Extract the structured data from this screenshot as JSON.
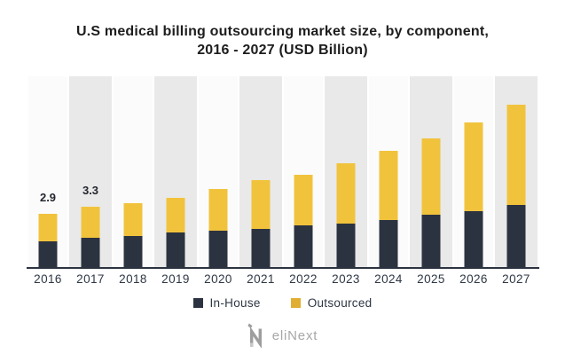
{
  "header": {
    "title_line1": "U.S medical billing outsourcing market size, by component,",
    "title_line2": "2016 - 2027 (USD Billion)"
  },
  "chart_data": {
    "type": "bar",
    "stacked": true,
    "title": "U.S medical billing outsourcing market size, by component, 2016 - 2027 (USD Billion)",
    "categories": [
      "2016",
      "2017",
      "2018",
      "2019",
      "2020",
      "2021",
      "2022",
      "2023",
      "2024",
      "2025",
      "2026",
      "2027"
    ],
    "series": [
      {
        "name": "In-House",
        "color": "#2c3340",
        "values": [
          1.4,
          1.6,
          1.7,
          1.9,
          2.0,
          2.1,
          2.3,
          2.4,
          2.6,
          2.9,
          3.1,
          3.4
        ]
      },
      {
        "name": "Outsourced",
        "color": "#f1c33d",
        "values": [
          1.5,
          1.7,
          1.8,
          1.9,
          2.3,
          2.7,
          2.8,
          3.3,
          3.8,
          4.2,
          4.9,
          5.5
        ]
      }
    ],
    "totals": [
      2.9,
      3.3,
      3.5,
      3.8,
      4.3,
      4.8,
      5.1,
      5.7,
      6.4,
      7.1,
      8.0,
      8.9
    ],
    "data_labels": [
      "2.9",
      "3.3",
      "",
      "",
      "",
      "",
      "",
      "",
      "",
      "",
      "",
      ""
    ],
    "xlabel": "",
    "ylabel": "",
    "ylim": [
      0,
      10.5
    ],
    "grid": false,
    "legend_position": "bottom",
    "background_stripes": [
      "#fbfbfb",
      "#e9e9e9"
    ],
    "axis_line_color": "#2c3340"
  },
  "legend": {
    "items": [
      {
        "label": "In-House",
        "color": "#2c3340"
      },
      {
        "label": "Outsourced",
        "color": "#dfae33"
      }
    ]
  },
  "footer": {
    "logo_text": "eliNext",
    "logo_icon": "elinext-n-icon",
    "logo_color": "#9e9e9e"
  }
}
